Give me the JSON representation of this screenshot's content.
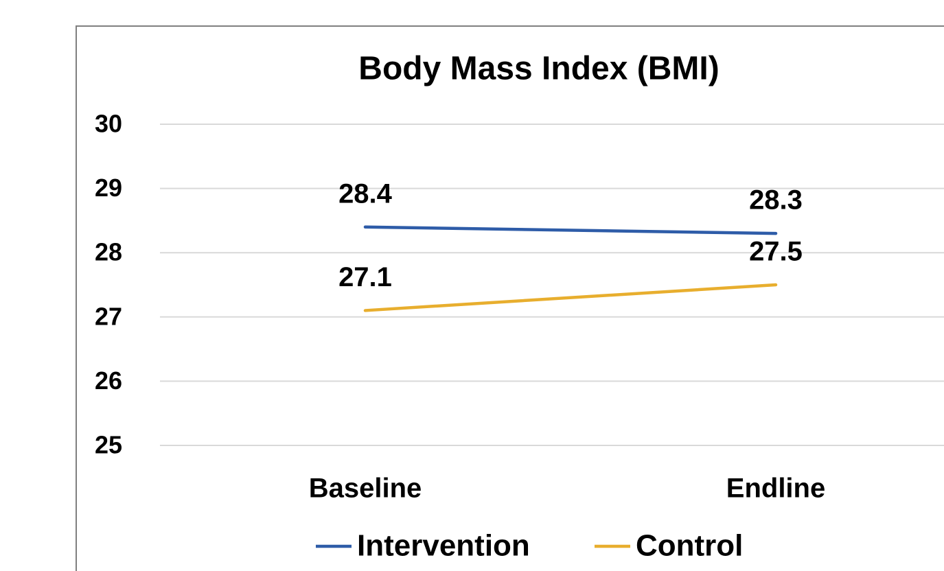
{
  "chart_data": {
    "type": "line",
    "title": "Body Mass Index (BMI)",
    "categories": [
      "Baseline",
      "Endline"
    ],
    "series": [
      {
        "name": "Intervention",
        "color": "#2e5ca8",
        "values": [
          28.4,
          28.3
        ]
      },
      {
        "name": "Control",
        "color": "#e8ae2e",
        "values": [
          27.1,
          27.5
        ]
      }
    ],
    "ylim": [
      25,
      30
    ],
    "yticks": [
      25,
      26,
      27,
      28,
      29,
      30
    ],
    "grid": true,
    "legend": "bottom"
  }
}
